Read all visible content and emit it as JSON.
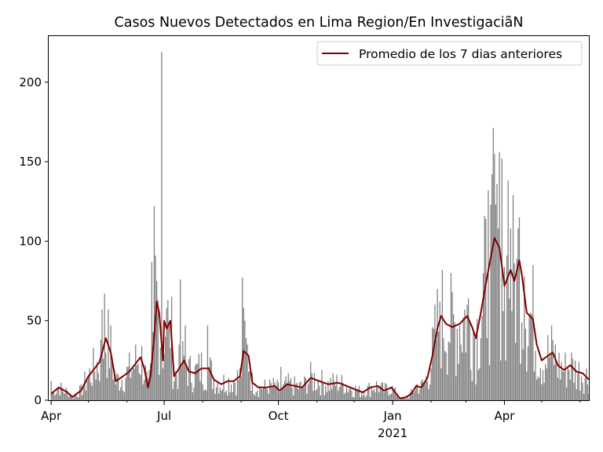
{
  "chart_data": {
    "type": "bar",
    "title": "Casos Nuevos Detectados en Lima Region/En Investigaciã\u0001N",
    "xlabel": "",
    "ylabel": "",
    "ylim": [
      0,
      229
    ],
    "xlim": [
      "2020-03-30",
      "2021-06-08"
    ],
    "grid": false,
    "legend_position": "top-right",
    "colors": {
      "bars": "#808080",
      "line": "#800000"
    },
    "x_ticks": [
      {
        "date": "2020-04-01",
        "label": "Apr"
      },
      {
        "date": "2020-07-01",
        "label": "Jul"
      },
      {
        "date": "2020-10-01",
        "label": "Oct"
      },
      {
        "date": "2021-01-01",
        "label": "Jan",
        "sublabel": "2021"
      },
      {
        "date": "2021-04-01",
        "label": "Apr"
      }
    ],
    "y_ticks": [
      0,
      50,
      100,
      150,
      200
    ],
    "series": [
      {
        "name": "Promedio de los 7 dias anteriores",
        "type": "line",
        "points": [
          [
            "2020-04-01",
            4
          ],
          [
            "2020-04-07",
            8
          ],
          [
            "2020-04-14",
            5
          ],
          [
            "2020-04-18",
            2
          ],
          [
            "2020-04-25",
            6
          ],
          [
            "2020-05-01",
            15
          ],
          [
            "2020-05-10",
            24
          ],
          [
            "2020-05-15",
            39
          ],
          [
            "2020-05-19",
            30
          ],
          [
            "2020-05-23",
            12
          ],
          [
            "2020-05-27",
            14
          ],
          [
            "2020-06-03",
            18
          ],
          [
            "2020-06-08",
            23
          ],
          [
            "2020-06-12",
            27
          ],
          [
            "2020-06-15",
            20
          ],
          [
            "2020-06-18",
            8
          ],
          [
            "2020-06-20",
            15
          ],
          [
            "2020-06-23",
            40
          ],
          [
            "2020-06-25",
            62
          ],
          [
            "2020-06-27",
            55
          ],
          [
            "2020-06-30",
            25
          ],
          [
            "2020-07-01",
            50
          ],
          [
            "2020-07-03",
            45
          ],
          [
            "2020-07-06",
            50
          ],
          [
            "2020-07-09",
            15
          ],
          [
            "2020-07-13",
            20
          ],
          [
            "2020-07-17",
            25
          ],
          [
            "2020-07-21",
            18
          ],
          [
            "2020-07-26",
            17
          ],
          [
            "2020-07-31",
            20
          ],
          [
            "2020-08-06",
            20
          ],
          [
            "2020-08-10",
            13
          ],
          [
            "2020-08-16",
            10
          ],
          [
            "2020-08-21",
            12
          ],
          [
            "2020-08-26",
            12
          ],
          [
            "2020-08-31",
            15
          ],
          [
            "2020-09-03",
            31
          ],
          [
            "2020-09-07",
            28
          ],
          [
            "2020-09-10",
            11
          ],
          [
            "2020-09-15",
            8
          ],
          [
            "2020-09-21",
            8
          ],
          [
            "2020-09-28",
            9
          ],
          [
            "2020-10-02",
            6
          ],
          [
            "2020-10-08",
            10
          ],
          [
            "2020-10-14",
            9
          ],
          [
            "2020-10-20",
            8
          ],
          [
            "2020-10-27",
            14
          ],
          [
            "2020-11-03",
            12
          ],
          [
            "2020-11-10",
            10
          ],
          [
            "2020-11-18",
            11
          ],
          [
            "2020-11-25",
            9
          ],
          [
            "2020-12-01",
            7
          ],
          [
            "2020-12-08",
            5
          ],
          [
            "2020-12-14",
            8
          ],
          [
            "2020-12-20",
            9
          ],
          [
            "2020-12-25",
            6
          ],
          [
            "2020-12-31",
            8
          ],
          [
            "2021-01-03",
            5
          ],
          [
            "2021-01-07",
            1
          ],
          [
            "2021-01-12",
            2
          ],
          [
            "2021-01-16",
            4
          ],
          [
            "2021-01-20",
            9
          ],
          [
            "2021-01-24",
            8
          ],
          [
            "2021-01-29",
            14
          ],
          [
            "2021-02-02",
            28
          ],
          [
            "2021-02-06",
            45
          ],
          [
            "2021-02-09",
            53
          ],
          [
            "2021-02-13",
            48
          ],
          [
            "2021-02-18",
            46
          ],
          [
            "2021-02-24",
            48
          ],
          [
            "2021-03-02",
            53
          ],
          [
            "2021-03-06",
            46
          ],
          [
            "2021-03-09",
            39
          ],
          [
            "2021-03-13",
            55
          ],
          [
            "2021-03-17",
            73
          ],
          [
            "2021-03-21",
            90
          ],
          [
            "2021-03-24",
            102
          ],
          [
            "2021-03-28",
            96
          ],
          [
            "2021-04-01",
            72
          ],
          [
            "2021-04-04",
            78
          ],
          [
            "2021-04-06",
            82
          ],
          [
            "2021-04-09",
            75
          ],
          [
            "2021-04-13",
            88
          ],
          [
            "2021-04-15",
            79
          ],
          [
            "2021-04-19",
            55
          ],
          [
            "2021-04-24",
            51
          ],
          [
            "2021-04-27",
            35
          ],
          [
            "2021-05-01",
            25
          ],
          [
            "2021-05-06",
            28
          ],
          [
            "2021-05-10",
            30
          ],
          [
            "2021-05-14",
            22
          ],
          [
            "2021-05-19",
            19
          ],
          [
            "2021-05-24",
            22
          ],
          [
            "2021-05-29",
            18
          ],
          [
            "2021-06-03",
            17
          ],
          [
            "2021-06-08",
            13
          ]
        ]
      },
      {
        "name": "",
        "type": "bar",
        "spikes": [
          [
            "2020-04-01",
            12
          ],
          [
            "2020-05-12",
            57
          ],
          [
            "2020-05-14",
            67
          ],
          [
            "2020-06-21",
            87
          ],
          [
            "2020-06-23",
            122
          ],
          [
            "2020-06-24",
            91
          ],
          [
            "2020-06-29",
            219
          ],
          [
            "2020-07-05",
            47
          ],
          [
            "2020-07-14",
            76
          ],
          [
            "2020-07-18",
            47
          ],
          [
            "2020-08-05",
            47
          ],
          [
            "2020-09-02",
            77
          ],
          [
            "2020-09-03",
            58
          ],
          [
            "2020-10-03",
            21
          ],
          [
            "2021-02-08",
            62
          ],
          [
            "2021-03-19",
            132
          ],
          [
            "2021-03-21",
            123
          ],
          [
            "2021-03-25",
            123
          ],
          [
            "2021-03-30",
            152
          ],
          [
            "2021-04-04",
            138
          ],
          [
            "2021-04-06",
            108
          ],
          [
            "2021-04-11",
            89
          ],
          [
            "2021-04-17",
            78
          ]
        ]
      }
    ]
  }
}
